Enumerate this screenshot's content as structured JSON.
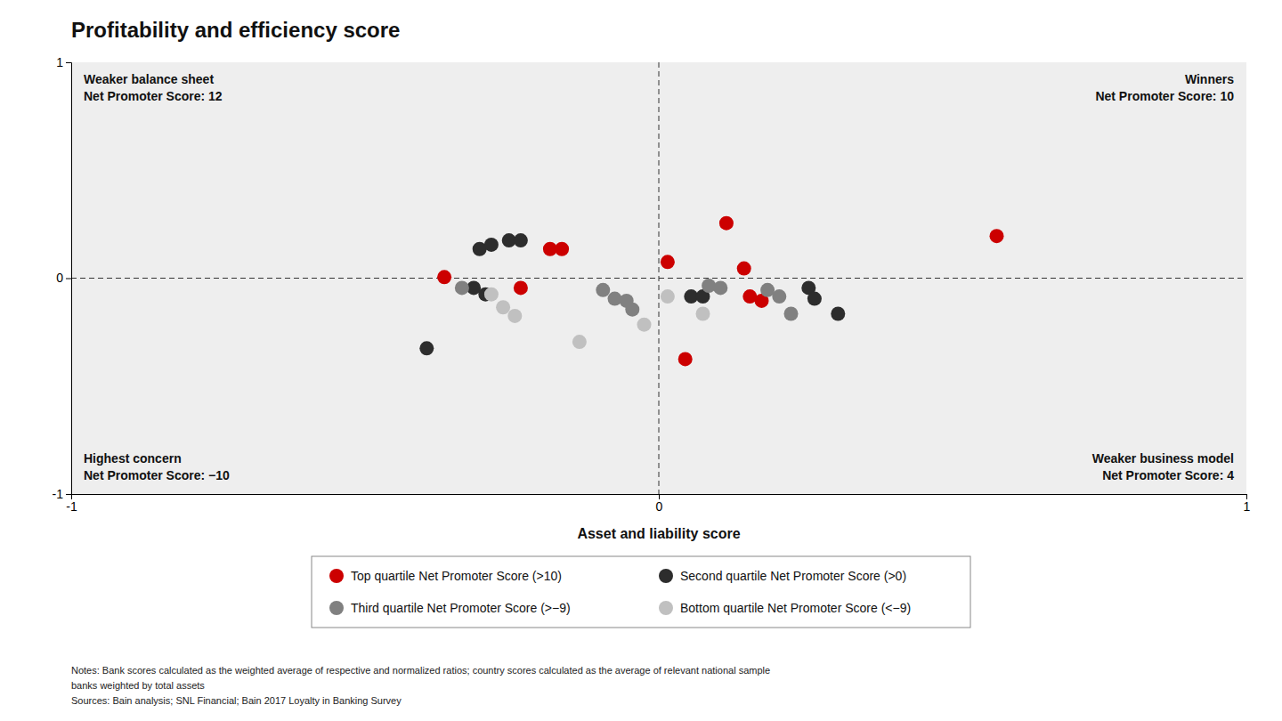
{
  "chart_data": {
    "type": "scatter",
    "title": "Profitability and efficiency score",
    "x_label": "Asset and liability score",
    "xlim": [
      -1,
      1
    ],
    "ylim": [
      -1,
      1
    ],
    "xticks": [
      -1,
      0,
      1
    ],
    "yticks": [
      -1,
      0,
      1
    ],
    "grid": false,
    "legend": "bottom",
    "series": [
      {
        "name": "Top quartile Net Promoter Score (>10)",
        "color": "#cc0000",
        "x": [
          -0.185,
          -0.165,
          0.015,
          0.045,
          0.115,
          0.145,
          0.155,
          0.175,
          -0.365,
          0.575,
          -0.235
        ],
        "values": [
          0.135,
          0.135,
          0.075,
          -0.375,
          0.255,
          0.045,
          -0.085,
          -0.105,
          0.005,
          0.195,
          -0.045
        ]
      },
      {
        "name": "Second quartile Net Promoter Score (>0)",
        "color": "#2d2d2d",
        "x": [
          -0.305,
          -0.285,
          -0.255,
          -0.235,
          -0.395,
          0.055,
          0.075,
          0.255,
          0.265,
          0.305,
          -0.315,
          -0.295
        ],
        "values": [
          0.135,
          0.155,
          0.175,
          0.175,
          -0.325,
          -0.085,
          -0.085,
          -0.045,
          -0.095,
          -0.165,
          -0.045,
          -0.075
        ]
      },
      {
        "name": "Third quartile Net Promoter Score (>−9)",
        "color": "#808080",
        "x": [
          -0.095,
          -0.075,
          -0.055,
          -0.045,
          0.085,
          0.105,
          0.185,
          0.205,
          0.225,
          -0.335
        ],
        "values": [
          -0.055,
          -0.095,
          -0.105,
          -0.145,
          -0.035,
          -0.045,
          -0.055,
          -0.085,
          -0.165,
          -0.045
        ]
      },
      {
        "name": "Bottom quartile Net Promoter Score (<−9)",
        "color": "#c0c0c0",
        "x": [
          -0.025,
          -0.285,
          -0.265,
          -0.245,
          -0.135,
          0.015,
          0.075
        ],
        "values": [
          -0.215,
          -0.075,
          -0.135,
          -0.175,
          -0.295,
          -0.085,
          -0.165
        ]
      }
    ],
    "annotations": [
      {
        "position": "top-left",
        "lines": [
          "Weaker balance sheet",
          "Net Promoter Score: 12"
        ]
      },
      {
        "position": "top-right",
        "lines": [
          "Winners",
          "Net Promoter Score: 10"
        ]
      },
      {
        "position": "bottom-left",
        "lines": [
          "Highest concern",
          "Net Promoter Score: −10"
        ]
      },
      {
        "position": "bottom-right",
        "lines": [
          "Weaker business model",
          "Net Promoter Score: 4"
        ]
      }
    ],
    "notes": [
      "Notes: Bank scores calculated as the weighted average of respective and normalized ratios; country scores calculated as the average of relevant national sample",
      "banks weighted by total assets",
      "Sources: Bain analysis; SNL Financial; Bain 2017 Loyalty in Banking Survey"
    ]
  }
}
